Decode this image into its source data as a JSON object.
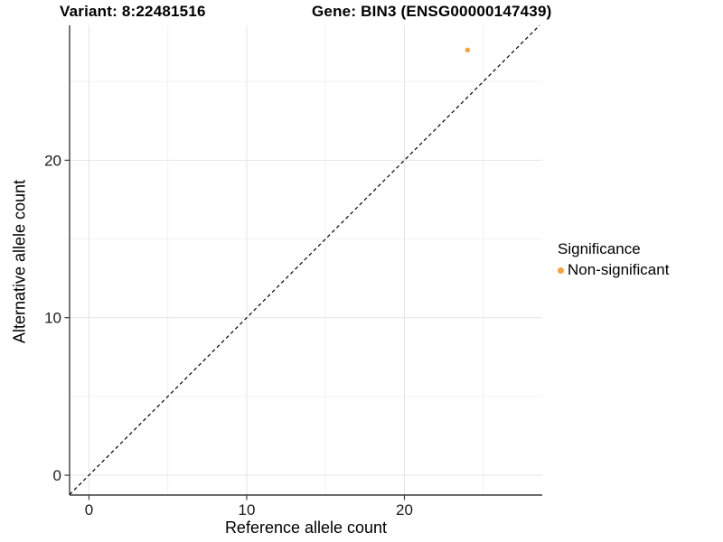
{
  "titles": {
    "variant": "Variant: 8:22481516",
    "gene": "Gene: BIN3 (ENSG00000147439)"
  },
  "chart_data": {
    "type": "scatter",
    "title": "Variant: 8:22481516   Gene: BIN3 (ENSG00000147439)",
    "xlabel": "Reference allele count",
    "ylabel": "Alternative allele count",
    "xlim": [
      -1.23,
      28.74
    ],
    "ylim": [
      -1.26,
      28.57
    ],
    "x_ticks": [
      0,
      10,
      20
    ],
    "y_ticks": [
      0,
      10,
      20
    ],
    "x_minor_gridlines": [
      5,
      15,
      25
    ],
    "y_minor_gridlines": [
      5,
      15,
      25
    ],
    "grid": true,
    "points": [
      {
        "x": 24,
        "y": 27,
        "series": "Non-significant"
      }
    ],
    "reference_line": {
      "kind": "identity",
      "slope": 1,
      "intercept": 0,
      "style": "dashed",
      "color": "#000000"
    },
    "legend": {
      "title": "Significance",
      "position": "right",
      "items": [
        {
          "label": "Non-significant",
          "color": "#F9A13C"
        }
      ]
    },
    "style": {
      "point_color": "#F9A13C",
      "axis_line_color": "#3c3c3c",
      "tick_label_color": "#1a1a1a",
      "major_grid_color": "#e4e4e4",
      "minor_grid_color": "#f1f1f1",
      "tick_label_size": "17",
      "x_tick_labels": [
        "0",
        "10",
        "20"
      ],
      "y_tick_labels": [
        "0",
        "10",
        "20"
      ]
    }
  }
}
